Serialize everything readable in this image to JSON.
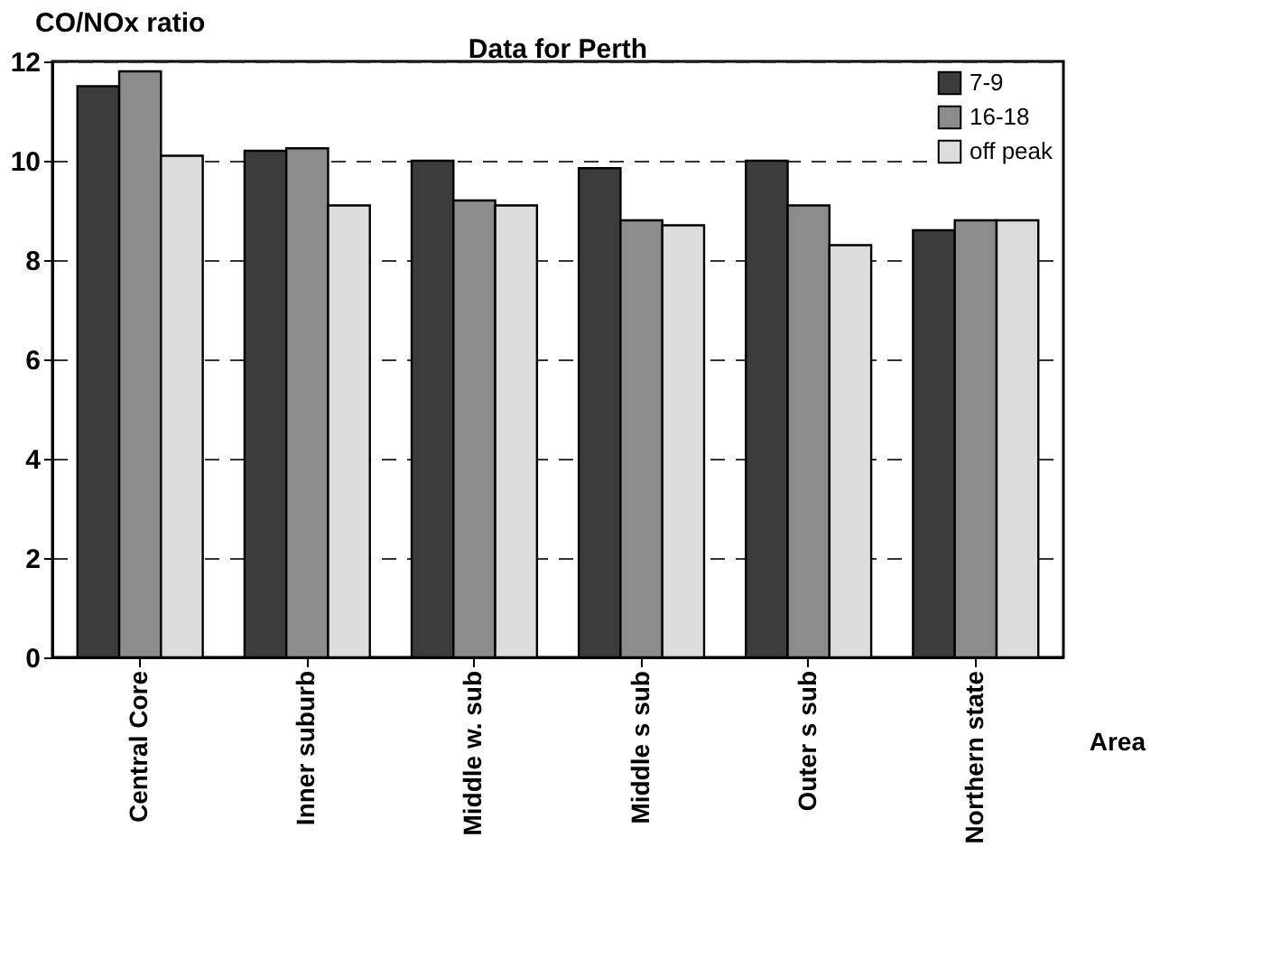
{
  "chart_data": {
    "type": "bar",
    "title": "Data for Perth",
    "xlabel": "Area",
    "ylabel": "CO/NOx ratio",
    "categories": [
      "Central  Core",
      "Inner  suburb",
      "Middle w. sub",
      "Middle  s  sub",
      "Outer  s  sub",
      "Northern  state"
    ],
    "series": [
      {
        "name": "7-9",
        "color": "#3c3c3c",
        "values": [
          11.5,
          10.2,
          10.0,
          9.85,
          10.0,
          8.6
        ]
      },
      {
        "name": "16-18",
        "color": "#8c8c8c",
        "values": [
          11.8,
          10.25,
          9.2,
          8.8,
          9.1,
          8.8
        ]
      },
      {
        "name": "off peak",
        "color": "#dcdcdc",
        "values": [
          10.1,
          9.1,
          9.1,
          8.7,
          8.3,
          8.8
        ]
      }
    ],
    "ylim": [
      0,
      12
    ],
    "yticks": [
      0,
      2,
      4,
      6,
      8,
      10,
      12
    ],
    "grid": "y",
    "legend": "top right"
  }
}
